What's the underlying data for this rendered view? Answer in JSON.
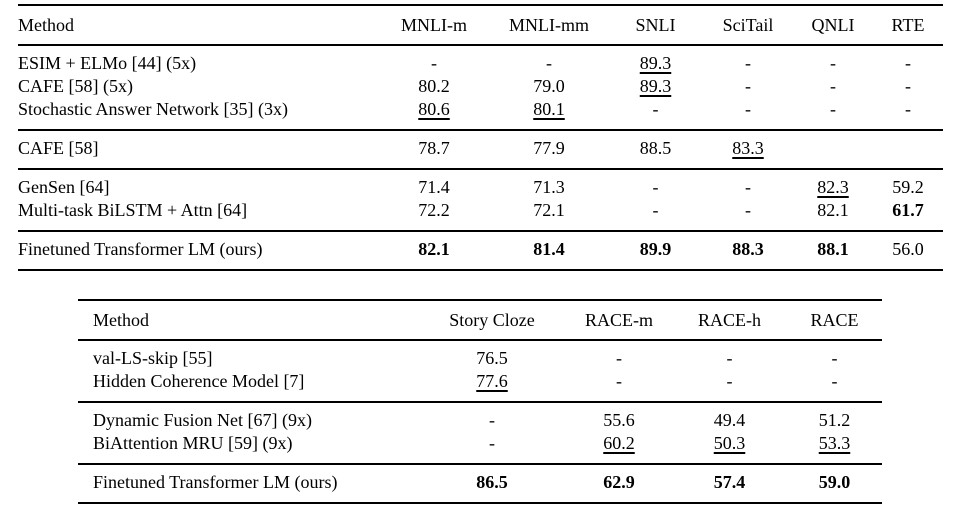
{
  "colors": {
    "text": "#000000",
    "rule": "#000000",
    "background": "#ffffff"
  },
  "tables": [
    {
      "name": "nli-results",
      "headers": [
        "Method",
        "MNLI-m",
        "MNLI-mm",
        "SNLI",
        "SciTail",
        "QNLI",
        "RTE"
      ],
      "sections": [
        {
          "rows": [
            {
              "method": "ESIM + ELMo [44] (5x)",
              "cells": [
                "-",
                "-",
                {
                  "t": "89.3",
                  "u": 1
                },
                "-",
                "-",
                "-"
              ]
            },
            {
              "method": "CAFE [58] (5x)",
              "cells": [
                "80.2",
                "79.0",
                {
                  "t": "89.3",
                  "u": 1
                },
                "-",
                "-",
                "-"
              ]
            },
            {
              "method": "Stochastic Answer Network [35] (3x)",
              "cells": [
                {
                  "t": "80.6",
                  "u": 1
                },
                {
                  "t": "80.1",
                  "u": 1
                },
                "-",
                "-",
                "-",
                "-"
              ]
            }
          ]
        },
        {
          "rows": [
            {
              "method": "CAFE [58]",
              "cells": [
                "78.7",
                "77.9",
                "88.5",
                {
                  "t": "83.3",
                  "u": 1
                },
                "",
                ""
              ]
            }
          ]
        },
        {
          "rows": [
            {
              "method": "GenSen [64]",
              "cells": [
                "71.4",
                "71.3",
                "-",
                "-",
                {
                  "t": "82.3",
                  "u": 1
                },
                "59.2"
              ]
            },
            {
              "method": "Multi-task BiLSTM + Attn [64]",
              "cells": [
                "72.2",
                "72.1",
                "-",
                "-",
                "82.1",
                {
                  "t": "61.7",
                  "b": 1
                }
              ]
            }
          ]
        },
        {
          "rows": [
            {
              "method": "Finetuned Transformer LM (ours)",
              "cells": [
                {
                  "t": "82.1",
                  "b": 1
                },
                {
                  "t": "81.4",
                  "b": 1
                },
                {
                  "t": "89.9",
                  "b": 1
                },
                {
                  "t": "88.3",
                  "b": 1
                },
                {
                  "t": "88.1",
                  "b": 1
                },
                "56.0"
              ]
            }
          ]
        }
      ]
    },
    {
      "name": "story-cloze-race-results",
      "headers": [
        "Method",
        "Story Cloze",
        "RACE-m",
        "RACE-h",
        "RACE"
      ],
      "sections": [
        {
          "rows": [
            {
              "method": "val-LS-skip [55]",
              "cells": [
                "76.5",
                "-",
                "-",
                "-"
              ]
            },
            {
              "method": "Hidden Coherence Model [7]",
              "cells": [
                {
                  "t": "77.6",
                  "u": 1
                },
                "-",
                "-",
                "-"
              ]
            }
          ]
        },
        {
          "rows": [
            {
              "method": "Dynamic Fusion Net [67] (9x)",
              "cells": [
                "-",
                "55.6",
                "49.4",
                "51.2"
              ]
            },
            {
              "method": "BiAttention MRU [59] (9x)",
              "cells": [
                "-",
                {
                  "t": "60.2",
                  "u": 1
                },
                {
                  "t": "50.3",
                  "u": 1
                },
                {
                  "t": "53.3",
                  "u": 1
                }
              ]
            }
          ]
        },
        {
          "rows": [
            {
              "method": "Finetuned Transformer LM (ours)",
              "cells": [
                {
                  "t": "86.5",
                  "b": 1
                },
                {
                  "t": "62.9",
                  "b": 1
                },
                {
                  "t": "57.4",
                  "b": 1
                },
                {
                  "t": "59.0",
                  "b": 1
                }
              ]
            }
          ]
        }
      ]
    }
  ]
}
